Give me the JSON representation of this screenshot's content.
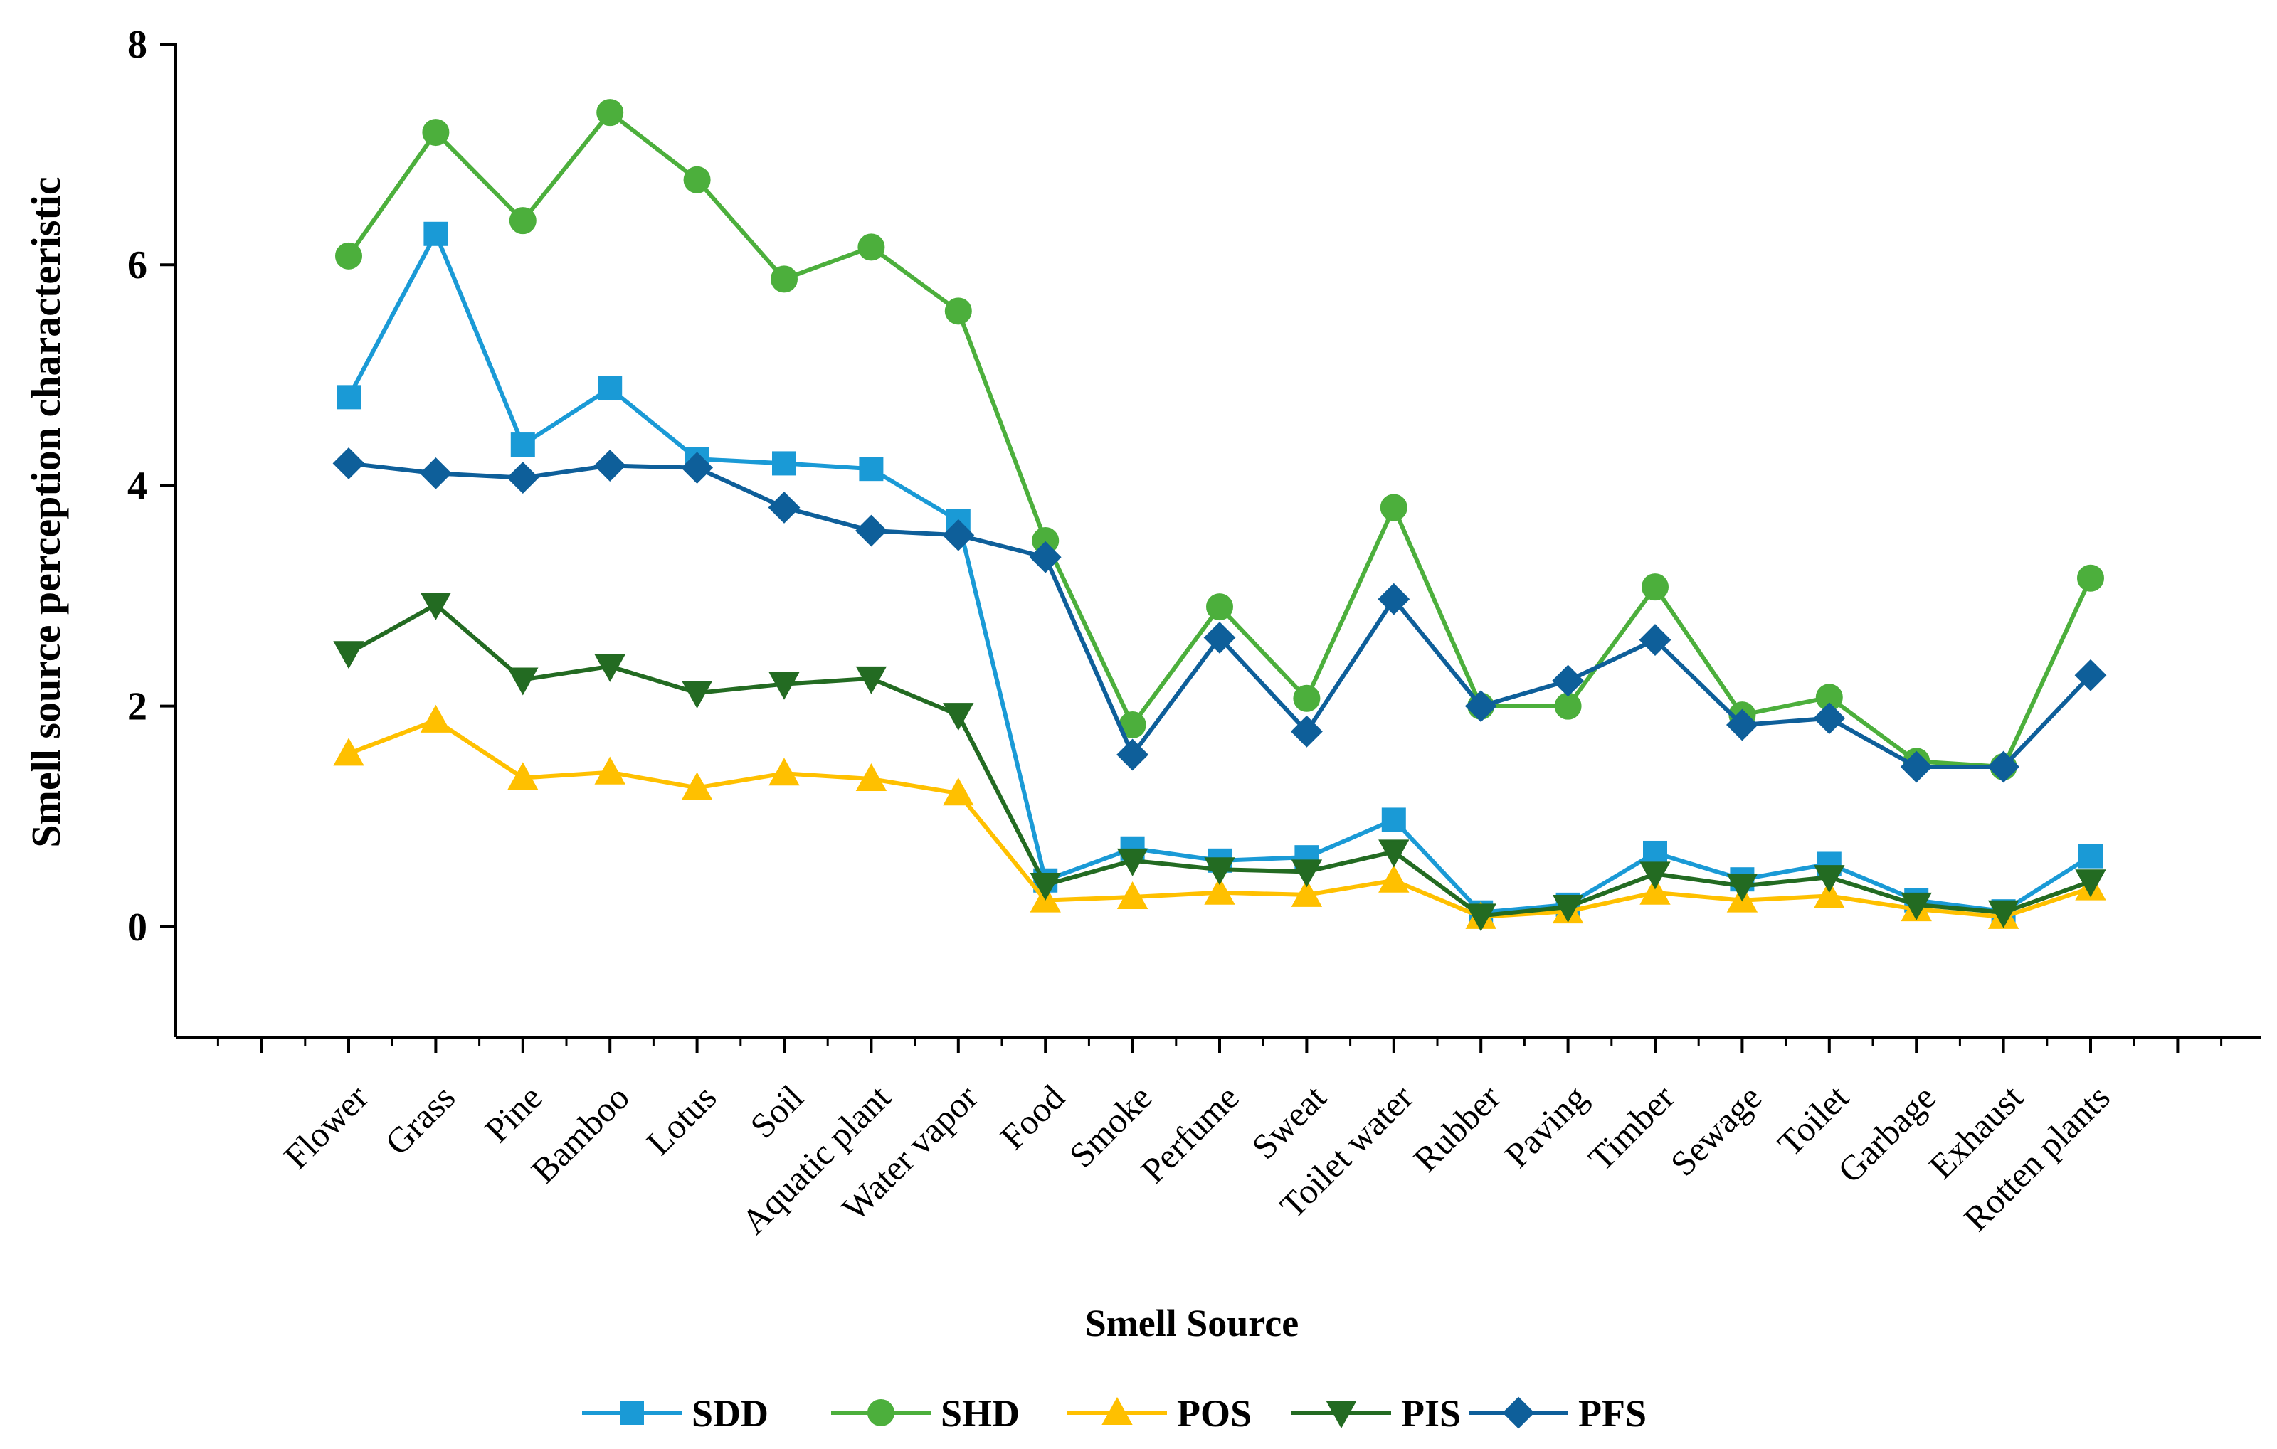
{
  "chart_data": {
    "type": "line",
    "title": "",
    "xlabel": "Smell Source",
    "ylabel": "Smell source perception characteristic",
    "ylim": [
      -1,
      8
    ],
    "yticks": [
      0,
      2,
      4,
      6,
      8
    ],
    "grid": false,
    "legend_position": "bottom",
    "categories": [
      "Flower",
      "Grass",
      "Pine",
      "Bamboo",
      "Lotus",
      "Soil",
      "Aquatic plant",
      "Water vapor",
      "Food",
      "Smoke",
      "Perfume",
      "Sweat",
      "Toilet water",
      "Rubber",
      "Paving",
      "Timber",
      "Sewage",
      "Toilet",
      "Garbage",
      "Exhaust",
      "Rotten plants"
    ],
    "series": [
      {
        "name": "SDD",
        "color": "#1a9ad6",
        "marker": "square",
        "values": [
          4.8,
          6.28,
          4.37,
          4.88,
          4.24,
          4.2,
          4.15,
          3.68,
          0.42,
          0.71,
          0.6,
          0.63,
          0.97,
          0.13,
          0.2,
          0.67,
          0.43,
          0.57,
          0.24,
          0.14,
          0.64
        ]
      },
      {
        "name": "SHD",
        "color": "#4caf3c",
        "marker": "circle",
        "values": [
          6.08,
          7.2,
          6.4,
          7.38,
          6.77,
          5.87,
          6.16,
          5.58,
          3.5,
          1.83,
          2.9,
          2.07,
          3.8,
          2.0,
          2.0,
          3.08,
          1.92,
          2.08,
          1.5,
          1.45,
          3.16
        ]
      },
      {
        "name": "POS",
        "color": "#ffc000",
        "marker": "triangle-up",
        "values": [
          1.57,
          1.87,
          1.35,
          1.4,
          1.26,
          1.39,
          1.34,
          1.21,
          0.24,
          0.27,
          0.31,
          0.29,
          0.42,
          0.09,
          0.14,
          0.31,
          0.24,
          0.28,
          0.16,
          0.09,
          0.35
        ]
      },
      {
        "name": "PIS",
        "color": "#236b22",
        "marker": "triangle-down",
        "values": [
          2.48,
          2.92,
          2.24,
          2.36,
          2.12,
          2.2,
          2.25,
          1.92,
          0.38,
          0.6,
          0.52,
          0.5,
          0.68,
          0.1,
          0.18,
          0.48,
          0.37,
          0.45,
          0.2,
          0.13,
          0.41
        ]
      },
      {
        "name": "PFS",
        "color": "#0e5f9a",
        "marker": "diamond",
        "values": [
          4.2,
          4.11,
          4.07,
          4.18,
          4.16,
          3.8,
          3.59,
          3.55,
          3.35,
          1.56,
          2.62,
          1.77,
          2.97,
          2.0,
          2.23,
          2.6,
          1.83,
          1.89,
          1.45,
          1.45,
          2.28
        ]
      }
    ]
  }
}
